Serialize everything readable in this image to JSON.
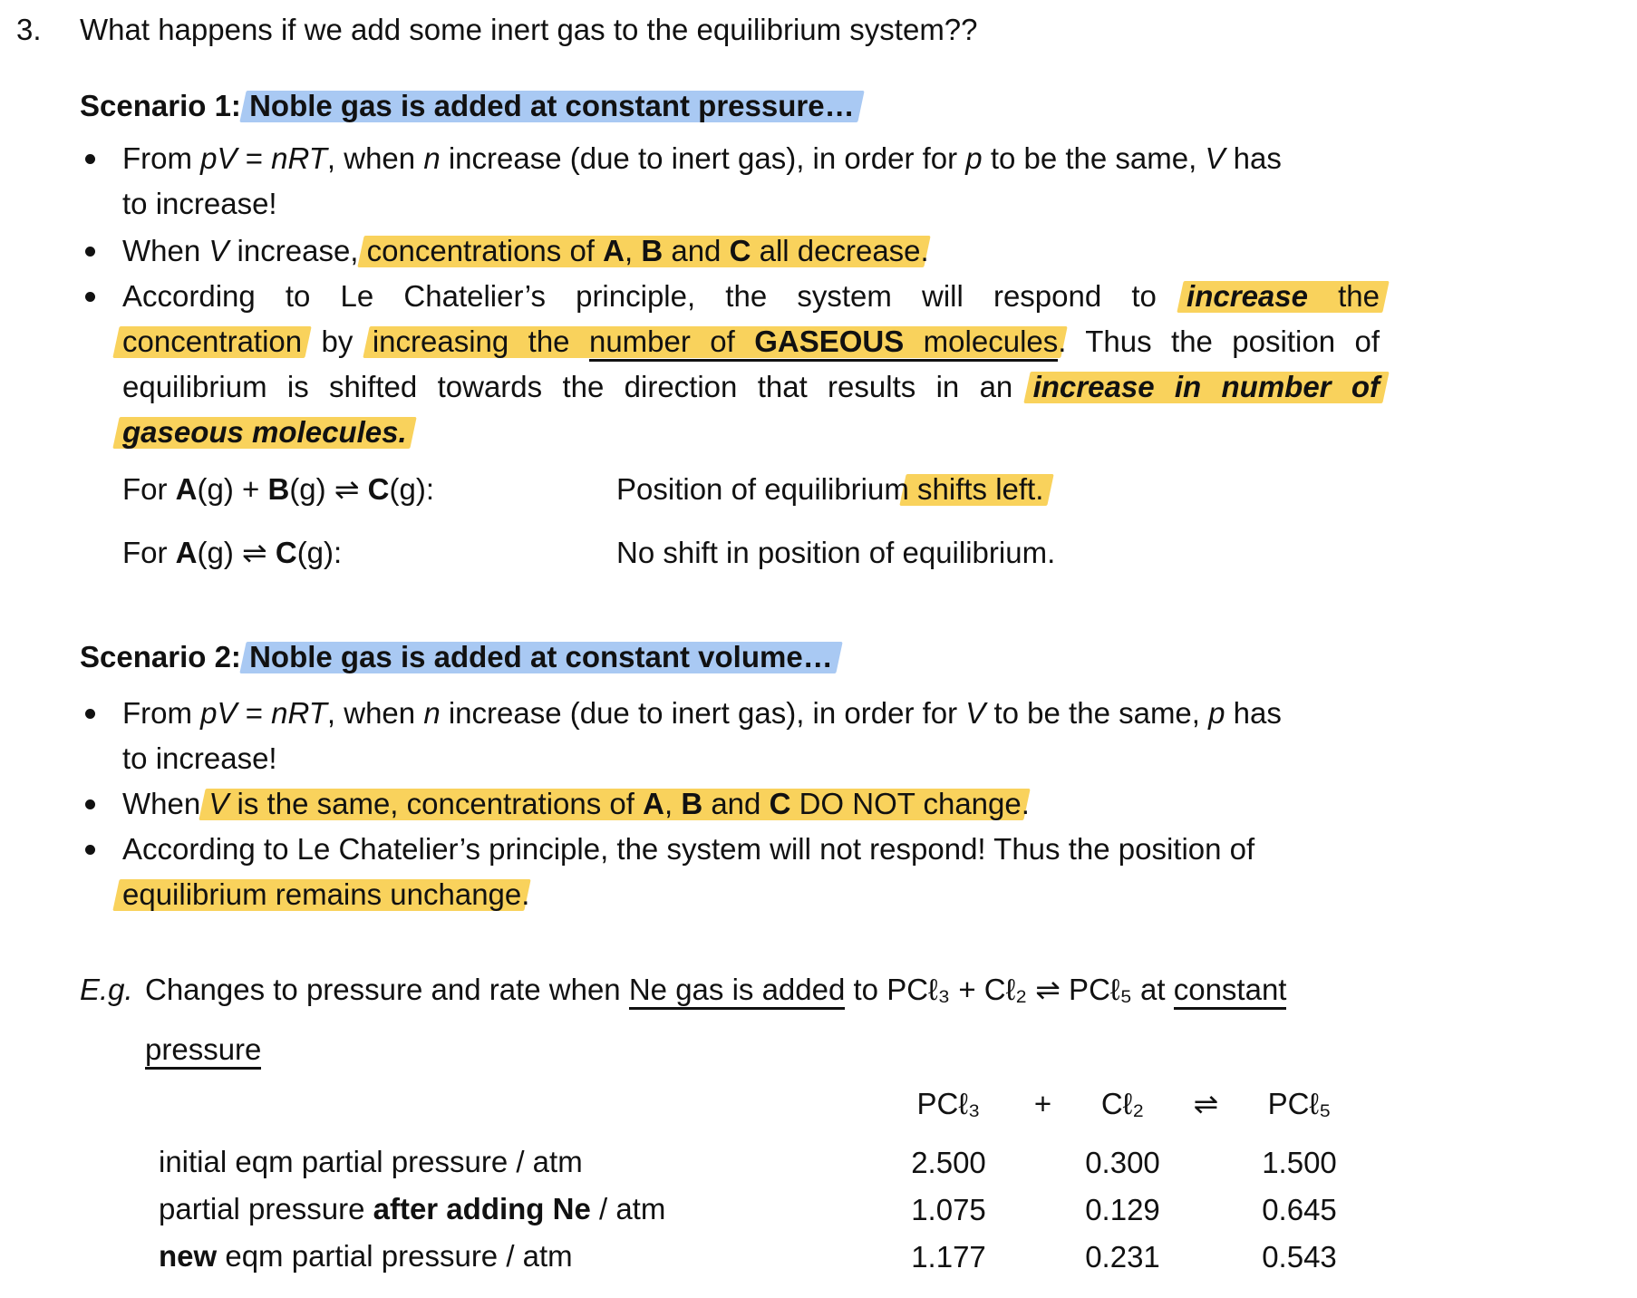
{
  "colors": {
    "highlight_yellow": "#F9D25C",
    "highlight_blue": "#A9C9F3",
    "text": "#111111",
    "background": "#FFFFFF"
  },
  "item": {
    "number": "3.",
    "question": "What happens if we add some inert gas to the equilibrium system??"
  },
  "scenario1": {
    "heading": [
      {
        "t": "Scenario 1: ",
        "b": true
      },
      {
        "t": "Noble gas is added at constant pressure…",
        "b": true,
        "hl": "b"
      }
    ],
    "bullet1_line1": [
      {
        "t": "From "
      },
      {
        "t": "pV",
        "i": true
      },
      {
        "t": " = "
      },
      {
        "t": "nRT",
        "i": true
      },
      {
        "t": ", when "
      },
      {
        "t": "n",
        "i": true
      },
      {
        "t": " increase (due to inert gas), in order for "
      },
      {
        "t": "p",
        "i": true
      },
      {
        "t": " to be the same, "
      },
      {
        "t": "V",
        "i": true
      },
      {
        "t": " has"
      }
    ],
    "bullet1_line2": [
      {
        "t": "to increase!"
      }
    ],
    "bullet2": [
      {
        "t": "When "
      },
      {
        "t": "V",
        "i": true
      },
      {
        "t": " increase, "
      },
      {
        "t": "concentrations of ",
        "hl": "y"
      },
      {
        "t": "A",
        "b": true,
        "hl": "y"
      },
      {
        "t": ", ",
        "hl": "y"
      },
      {
        "t": "B",
        "b": true,
        "hl": "y"
      },
      {
        "t": " and ",
        "hl": "y"
      },
      {
        "t": "C",
        "b": true,
        "hl": "y"
      },
      {
        "t": " all decrease",
        "hl": "y"
      },
      {
        "t": "."
      }
    ],
    "bullet3_line1": [
      {
        "t": "According to Le Chatelier’s principle, the system will respond to "
      },
      {
        "t": "increase ",
        "b": true,
        "i": true,
        "hl": "y"
      },
      {
        "t": "the",
        "hl": "y"
      }
    ],
    "bullet3_line2": [
      {
        "t": "concentration",
        "hl": "y"
      },
      {
        "t": " by "
      },
      {
        "t": "increasing the ",
        "hl": "y"
      },
      {
        "t": "number of ",
        "u": true,
        "hl": "y"
      },
      {
        "t": "GASEOUS",
        "b": true,
        "u": true,
        "hl": "y"
      },
      {
        "t": " molecules",
        "u": true,
        "hl": "y"
      },
      {
        "t": ". Thus the position of"
      }
    ],
    "bullet3_line3": [
      {
        "t": "equilibrium is shifted towards the direction that results in an "
      },
      {
        "t": "increase in number of",
        "b": true,
        "i": true,
        "hl": "y"
      }
    ],
    "bullet3_line4": [
      {
        "t": "gaseous molecules.",
        "b": true,
        "i": true,
        "hl": "y"
      }
    ],
    "eq1_label": [
      {
        "t": "For "
      },
      {
        "t": "A",
        "b": true
      },
      {
        "t": "(g) + "
      },
      {
        "t": "B",
        "b": true
      },
      {
        "t": "(g) ⇌ "
      },
      {
        "t": "C",
        "b": true
      },
      {
        "t": "(g):"
      }
    ],
    "eq1_result": [
      {
        "t": "Position of equilibrium"
      },
      {
        "t": " shifts left.",
        "hl": "y"
      }
    ],
    "eq2_label": [
      {
        "t": "For "
      },
      {
        "t": "A",
        "b": true
      },
      {
        "t": "(g) ⇌ "
      },
      {
        "t": "C",
        "b": true
      },
      {
        "t": "(g):"
      }
    ],
    "eq2_result": [
      {
        "t": "No shift in position of equilibrium."
      }
    ]
  },
  "scenario2": {
    "heading": [
      {
        "t": "Scenario 2: ",
        "b": true
      },
      {
        "t": "Noble gas is added at constant volume…",
        "b": true,
        "hl": "b"
      }
    ],
    "bullet1_line1": [
      {
        "t": "From "
      },
      {
        "t": "pV",
        "i": true
      },
      {
        "t": " = "
      },
      {
        "t": "nRT",
        "i": true
      },
      {
        "t": ", when "
      },
      {
        "t": "n",
        "i": true
      },
      {
        "t": " increase (due to inert gas), in order for "
      },
      {
        "t": "V",
        "i": true
      },
      {
        "t": " to be the same, "
      },
      {
        "t": "p",
        "i": true
      },
      {
        "t": " has"
      }
    ],
    "bullet1_line2": [
      {
        "t": "to increase!"
      }
    ],
    "bullet2": [
      {
        "t": "When "
      },
      {
        "t": "V",
        "i": true,
        "hl": "y"
      },
      {
        "t": " is the same, concentrations of ",
        "hl": "y"
      },
      {
        "t": "A",
        "b": true,
        "hl": "y"
      },
      {
        "t": ", ",
        "hl": "y"
      },
      {
        "t": "B",
        "b": true,
        "hl": "y"
      },
      {
        "t": " and ",
        "hl": "y"
      },
      {
        "t": "C",
        "b": true,
        "hl": "y"
      },
      {
        "t": " DO NOT change",
        "hl": "y"
      },
      {
        "t": "."
      }
    ],
    "bullet3_line1": [
      {
        "t": "According to Le Chatelier’s principle, the system will not respond! Thus the position of"
      }
    ],
    "bullet3_line2": [
      {
        "t": "equilibrium remains unchange",
        "hl": "y"
      },
      {
        "t": "."
      }
    ]
  },
  "example": {
    "label": [
      {
        "t": "E.g.",
        "i": true
      }
    ],
    "line1": [
      {
        "t": "Changes to pressure and rate when "
      },
      {
        "t": "Ne gas is added",
        "u": true
      },
      {
        "t": " to PCℓ₃ + Cℓ₂ ⇌ PCℓ₅ at "
      },
      {
        "t": "constant",
        "u": true
      }
    ],
    "line2": [
      {
        "t": "pressure",
        "u": true
      }
    ]
  },
  "table": {
    "header": {
      "reactant1": "PCℓ₃",
      "plus": "+",
      "reactant2": "Cℓ₂",
      "arrow": "⇌",
      "product": "PCℓ₅"
    },
    "rows": [
      {
        "label": [
          {
            "t": "initial eqm partial pressure / atm"
          }
        ],
        "v1": "2.500",
        "v2": "0.300",
        "v3": "1.500"
      },
      {
        "label": [
          {
            "t": "partial pressure "
          },
          {
            "t": "after adding Ne",
            "b": true
          },
          {
            "t": " / atm"
          }
        ],
        "v1": "1.075",
        "v2": "0.129",
        "v3": "0.645"
      },
      {
        "label": [
          {
            "t": "new",
            "b": true
          },
          {
            "t": " eqm partial pressure / atm"
          }
        ],
        "v1": "1.177",
        "v2": "0.231",
        "v3": "0.543"
      }
    ]
  }
}
